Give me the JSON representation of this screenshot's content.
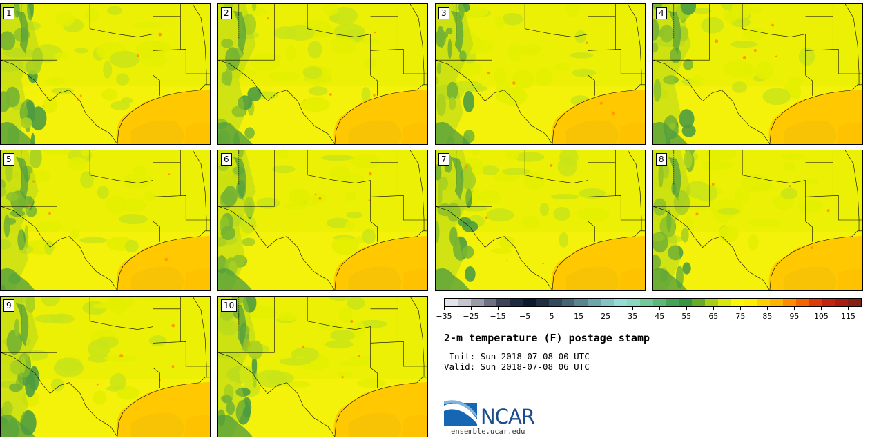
{
  "title": "2-m temperature (F) postage stamp",
  "init_label": " Init: Sun 2018-07-08 00 UTC",
  "valid_label": "Valid: Sun 2018-07-08 06 UTC",
  "logo_text": "NCAR",
  "site": "ensemble.ucar.edu",
  "members": [
    "1",
    "2",
    "3",
    "4",
    "5",
    "6",
    "7",
    "8",
    "9",
    "10"
  ],
  "colorbar": {
    "min": -35,
    "max": 120,
    "step": 5,
    "tick_values": [
      -35,
      -25,
      -15,
      -5,
      5,
      15,
      25,
      35,
      45,
      55,
      65,
      75,
      85,
      95,
      105,
      115
    ],
    "tick_labels": [
      "−35",
      "−25",
      "−15",
      "−5",
      "5",
      "15",
      "25",
      "35",
      "45",
      "55",
      "65",
      "75",
      "85",
      "95",
      "105",
      "115"
    ],
    "colors": [
      "#e3e3ea",
      "#c4c5cf",
      "#9a9ca9",
      "#6e7185",
      "#3d4358",
      "#1c2a42",
      "#0d1a2e",
      "#1e3044",
      "#324b5c",
      "#456575",
      "#5a8490",
      "#6ea5ad",
      "#85c3c5",
      "#96dcd6",
      "#8ad7c0",
      "#74c99b",
      "#5cb779",
      "#47a457",
      "#379442",
      "#69aa27",
      "#a7cf16",
      "#d8e80d",
      "#f8f70a",
      "#ffee00",
      "#ffd000",
      "#ffb200",
      "#ff8c00",
      "#f66400",
      "#e03a0c",
      "#c42510",
      "#a81d14",
      "#862014"
    ]
  },
  "map_colors": {
    "ocean": "#ffc800",
    "ocean_warm": "#f4c008",
    "land_base": "#f4f20a",
    "plains": "#e4ef00",
    "cool": "#c9e418",
    "cooler": "#a8d020",
    "mountains": "#7cb830",
    "peaks": "#4e9c40",
    "hot": "#ff9a00",
    "border": "#000000"
  }
}
